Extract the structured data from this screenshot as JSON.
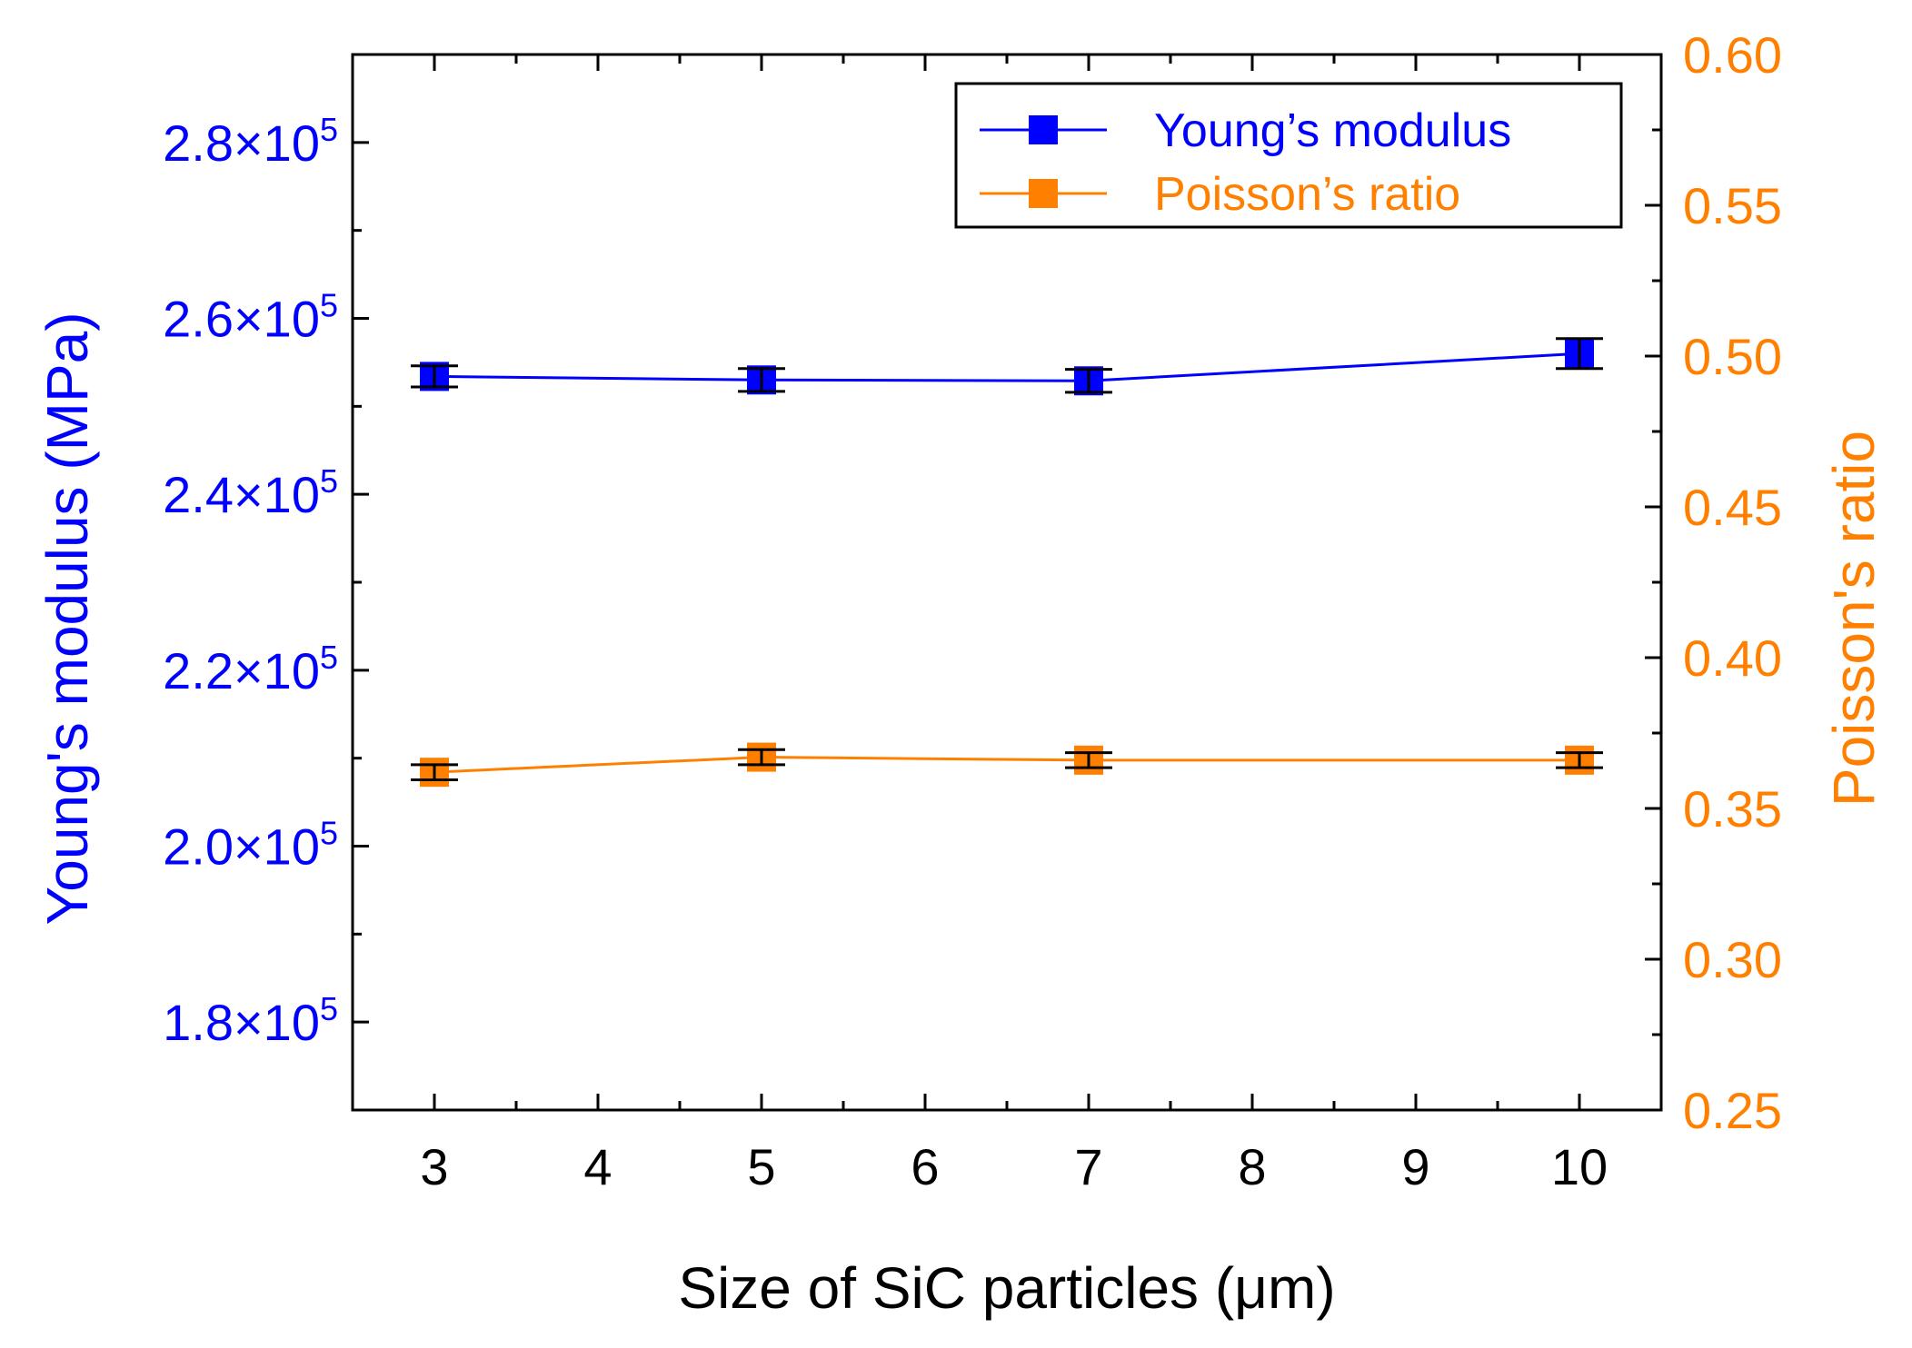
{
  "chart_data": {
    "type": "line",
    "title": "",
    "xlabel": "Size of SiC particles (μm)",
    "ylabel_left": "Young's modulus (MPa)",
    "ylabel_right": "Poisson's ratio",
    "xlim": [
      2.5,
      10.5
    ],
    "ylim_left": [
      170000,
      290000
    ],
    "ylim_right": [
      0.25,
      0.6
    ],
    "x_ticks": [
      3,
      4,
      5,
      6,
      7,
      8,
      9,
      10
    ],
    "x_tick_labels": [
      "3",
      "4",
      "5",
      "6",
      "7",
      "8",
      "9",
      "10"
    ],
    "y_left_ticks": [
      180000,
      200000,
      220000,
      240000,
      260000,
      280000
    ],
    "y_left_tick_labels": [
      {
        "mantissa": "1.8",
        "exponent": "5"
      },
      {
        "mantissa": "2.0",
        "exponent": "5"
      },
      {
        "mantissa": "2.2",
        "exponent": "5"
      },
      {
        "mantissa": "2.4",
        "exponent": "5"
      },
      {
        "mantissa": "2.6",
        "exponent": "5"
      },
      {
        "mantissa": "2.8",
        "exponent": "5"
      }
    ],
    "y_right_ticks": [
      0.25,
      0.3,
      0.35,
      0.4,
      0.45,
      0.5,
      0.55,
      0.6
    ],
    "y_right_tick_labels": [
      "0.25",
      "0.30",
      "0.35",
      "0.40",
      "0.45",
      "0.50",
      "0.55",
      "0.60"
    ],
    "legend_position": "top-right",
    "series": [
      {
        "name": "Young’s modulus",
        "axis": "left",
        "color": "#0000ff",
        "marker": "square",
        "x": [
          3,
          5,
          7,
          10
        ],
        "values": [
          253400,
          253000,
          252900,
          256000
        ],
        "errors": [
          1200,
          1300,
          1300,
          1700
        ]
      },
      {
        "name": "Poisson’s ratio",
        "axis": "right",
        "color": "#ff8000",
        "marker": "square",
        "x": [
          3,
          5,
          7,
          10
        ],
        "values": [
          0.362,
          0.367,
          0.366,
          0.366
        ],
        "errors": [
          0.0025,
          0.0025,
          0.0025,
          0.0025
        ]
      }
    ]
  }
}
